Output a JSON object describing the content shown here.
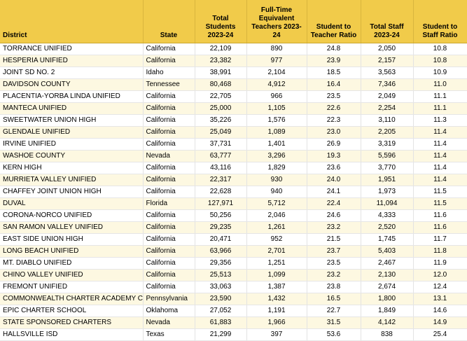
{
  "headers": {
    "district": "District",
    "state": "State",
    "total_students": "Total Students 2023-24",
    "fte_teachers": "Full-Time Equivalent Teachers 2023-24",
    "student_teacher_ratio": "Student to Teacher Ratio",
    "total_staff": "Total Staff 2023-24",
    "student_staff_ratio": "Student to Staff Ratio"
  },
  "rows": [
    {
      "district": "TORRANCE UNIFIED",
      "state": "California",
      "students": "22,109",
      "teachers": "890",
      "st_ratio": "24.8",
      "staff": "2,050",
      "ss_ratio": "10.8"
    },
    {
      "district": "HESPERIA UNIFIED",
      "state": "California",
      "students": "23,382",
      "teachers": "977",
      "st_ratio": "23.9",
      "staff": "2,157",
      "ss_ratio": "10.8"
    },
    {
      "district": "JOINT SD NO. 2",
      "state": "Idaho",
      "students": "38,991",
      "teachers": "2,104",
      "st_ratio": "18.5",
      "staff": "3,563",
      "ss_ratio": "10.9"
    },
    {
      "district": "DAVIDSON COUNTY",
      "state": "Tennessee",
      "students": "80,468",
      "teachers": "4,912",
      "st_ratio": "16.4",
      "staff": "7,346",
      "ss_ratio": "11.0"
    },
    {
      "district": "PLACENTIA-YORBA LINDA UNIFIED",
      "state": "California",
      "students": "22,705",
      "teachers": "966",
      "st_ratio": "23.5",
      "staff": "2,049",
      "ss_ratio": "11.1"
    },
    {
      "district": "MANTECA UNIFIED",
      "state": "California",
      "students": "25,000",
      "teachers": "1,105",
      "st_ratio": "22.6",
      "staff": "2,254",
      "ss_ratio": "11.1"
    },
    {
      "district": "SWEETWATER UNION HIGH",
      "state": "California",
      "students": "35,226",
      "teachers": "1,576",
      "st_ratio": "22.3",
      "staff": "3,110",
      "ss_ratio": "11.3"
    },
    {
      "district": "GLENDALE UNIFIED",
      "state": "California",
      "students": "25,049",
      "teachers": "1,089",
      "st_ratio": "23.0",
      "staff": "2,205",
      "ss_ratio": "11.4"
    },
    {
      "district": "IRVINE UNIFIED",
      "state": "California",
      "students": "37,731",
      "teachers": "1,401",
      "st_ratio": "26.9",
      "staff": "3,319",
      "ss_ratio": "11.4"
    },
    {
      "district": "WASHOE COUNTY",
      "state": "Nevada",
      "students": "63,777",
      "teachers": "3,296",
      "st_ratio": "19.3",
      "staff": "5,596",
      "ss_ratio": "11.4"
    },
    {
      "district": "KERN HIGH",
      "state": "California",
      "students": "43,116",
      "teachers": "1,829",
      "st_ratio": "23.6",
      "staff": "3,770",
      "ss_ratio": "11.4"
    },
    {
      "district": "MURRIETA VALLEY UNIFIED",
      "state": "California",
      "students": "22,317",
      "teachers": "930",
      "st_ratio": "24.0",
      "staff": "1,951",
      "ss_ratio": "11.4"
    },
    {
      "district": "CHAFFEY JOINT UNION HIGH",
      "state": "California",
      "students": "22,628",
      "teachers": "940",
      "st_ratio": "24.1",
      "staff": "1,973",
      "ss_ratio": "11.5"
    },
    {
      "district": "DUVAL",
      "state": "Florida",
      "students": "127,971",
      "teachers": "5,712",
      "st_ratio": "22.4",
      "staff": "11,094",
      "ss_ratio": "11.5"
    },
    {
      "district": "CORONA-NORCO UNIFIED",
      "state": "California",
      "students": "50,256",
      "teachers": "2,046",
      "st_ratio": "24.6",
      "staff": "4,333",
      "ss_ratio": "11.6"
    },
    {
      "district": "SAN RAMON VALLEY UNIFIED",
      "state": "California",
      "students": "29,235",
      "teachers": "1,261",
      "st_ratio": "23.2",
      "staff": "2,520",
      "ss_ratio": "11.6"
    },
    {
      "district": "EAST SIDE UNION HIGH",
      "state": "California",
      "students": "20,471",
      "teachers": "952",
      "st_ratio": "21.5",
      "staff": "1,745",
      "ss_ratio": "11.7"
    },
    {
      "district": "LONG BEACH UNIFIED",
      "state": "California",
      "students": "63,966",
      "teachers": "2,701",
      "st_ratio": "23.7",
      "staff": "5,403",
      "ss_ratio": "11.8"
    },
    {
      "district": "MT. DIABLO UNIFIED",
      "state": "California",
      "students": "29,356",
      "teachers": "1,251",
      "st_ratio": "23.5",
      "staff": "2,467",
      "ss_ratio": "11.9"
    },
    {
      "district": "CHINO VALLEY UNIFIED",
      "state": "California",
      "students": "25,513",
      "teachers": "1,099",
      "st_ratio": "23.2",
      "staff": "2,130",
      "ss_ratio": "12.0"
    },
    {
      "district": "FREMONT UNIFIED",
      "state": "California",
      "students": "33,063",
      "teachers": "1,387",
      "st_ratio": "23.8",
      "staff": "2,674",
      "ss_ratio": "12.4"
    },
    {
      "district": "COMMONWEALTH CHARTER ACADEMY CS",
      "state": "Pennsylvania",
      "students": "23,590",
      "teachers": "1,432",
      "st_ratio": "16.5",
      "staff": "1,800",
      "ss_ratio": "13.1"
    },
    {
      "district": "EPIC CHARTER SCHOOL",
      "state": "Oklahoma",
      "students": "27,052",
      "teachers": "1,191",
      "st_ratio": "22.7",
      "staff": "1,849",
      "ss_ratio": "14.6"
    },
    {
      "district": "STATE SPONSORED CHARTERS",
      "state": "Nevada",
      "students": "61,883",
      "teachers": "1,966",
      "st_ratio": "31.5",
      "staff": "4,142",
      "ss_ratio": "14.9"
    },
    {
      "district": "HALLSVILLE ISD",
      "state": "Texas",
      "students": "21,299",
      "teachers": "397",
      "st_ratio": "53.6",
      "staff": "838",
      "ss_ratio": "25.4"
    }
  ]
}
